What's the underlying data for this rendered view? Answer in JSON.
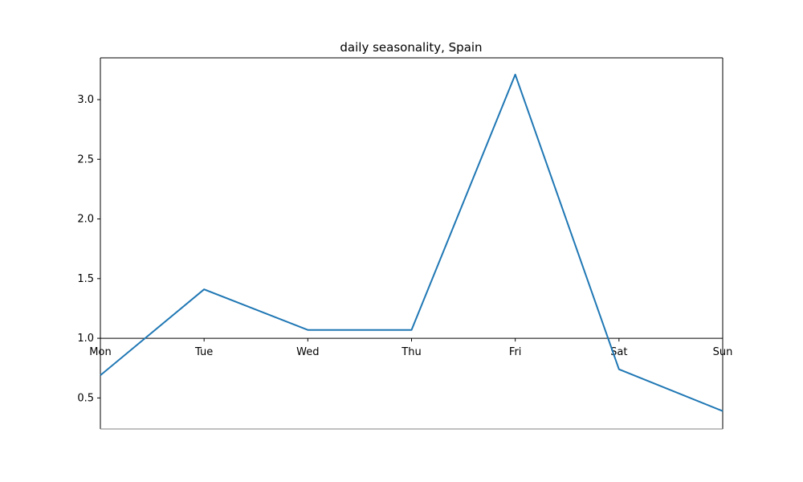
{
  "chart_data": {
    "type": "line",
    "title": "daily seasonality, Spain",
    "xlabel": "",
    "ylabel": "",
    "categories": [
      "Mon",
      "Tue",
      "Wed",
      "Thu",
      "Fri",
      "Sat",
      "Sun"
    ],
    "series": [
      {
        "values": [
          0.69,
          1.41,
          1.07,
          1.07,
          3.21,
          0.74,
          0.39
        ],
        "color": "#1f77b4"
      }
    ],
    "ylim": [
      0.24,
      3.35
    ],
    "yticks": [
      "0.5",
      "1.0",
      "1.5",
      "2.0",
      "2.5",
      "3.0"
    ],
    "x_axis_at_y": 1.0,
    "grid": false,
    "legend": "none"
  }
}
